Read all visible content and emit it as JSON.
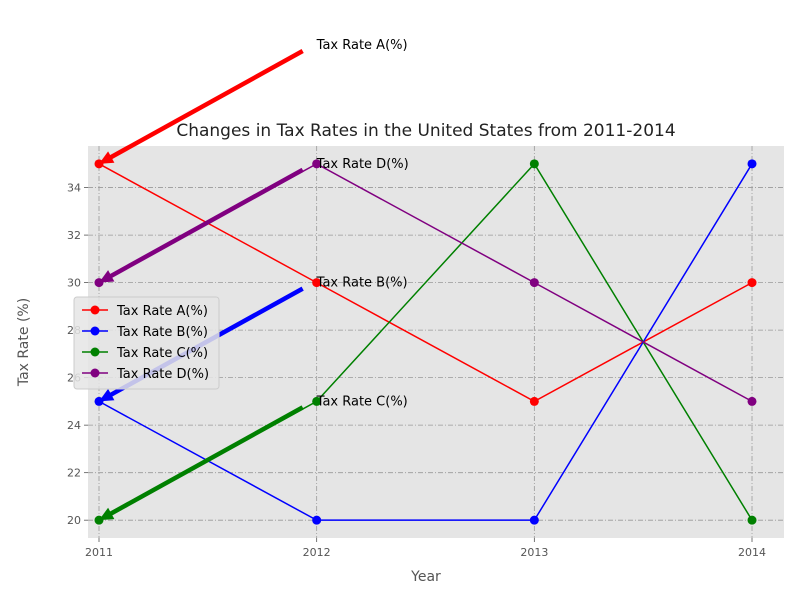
{
  "chart_data": {
    "type": "line",
    "title": "Changes in Tax Rates in the United States from 2011-2014",
    "xlabel": "Year",
    "ylabel": "Tax Rate (%)",
    "categories": [
      "2011",
      "2012",
      "2013",
      "2014"
    ],
    "x_tick_labels": [
      "2011",
      "2012",
      "2013",
      "2014"
    ],
    "y_tick_labels": [
      "20",
      "22",
      "24",
      "26",
      "28",
      "30",
      "32",
      "34"
    ],
    "y_ticks": [
      20,
      22,
      24,
      26,
      28,
      30,
      32,
      34
    ],
    "ylim": [
      19.25,
      35.75
    ],
    "grid": true,
    "legend_position": "center-left",
    "series": [
      {
        "name": "Tax Rate A(%)",
        "values": [
          35,
          30,
          25,
          30
        ],
        "color": "#ff0000"
      },
      {
        "name": "Tax Rate B(%)",
        "values": [
          25,
          20,
          20,
          35
        ],
        "color": "#0000ff"
      },
      {
        "name": "Tax Rate C(%)",
        "values": [
          20,
          25,
          35,
          20
        ],
        "color": "#008000"
      },
      {
        "name": "Tax Rate D(%)",
        "values": [
          30,
          35,
          30,
          25
        ],
        "color": "#800080"
      }
    ],
    "annotations": [
      {
        "text": "Tax Rate A(%)",
        "series": 0,
        "point": [
          0,
          35
        ],
        "text_at": [
          1,
          40
        ],
        "color": "#ff0000"
      },
      {
        "text": "Tax Rate B(%)",
        "series": 1,
        "point": [
          0,
          25
        ],
        "text_at": [
          1,
          30
        ],
        "color": "#0000ff"
      },
      {
        "text": "Tax Rate C(%)",
        "series": 2,
        "point": [
          0,
          20
        ],
        "text_at": [
          1,
          25
        ],
        "color": "#008000"
      },
      {
        "text": "Tax Rate D(%)",
        "series": 3,
        "point": [
          0,
          30
        ],
        "text_at": [
          1,
          35
        ],
        "color": "#800080"
      }
    ],
    "style": {
      "plot_background": "#e5e5e5",
      "grid_color": "#999999"
    }
  }
}
